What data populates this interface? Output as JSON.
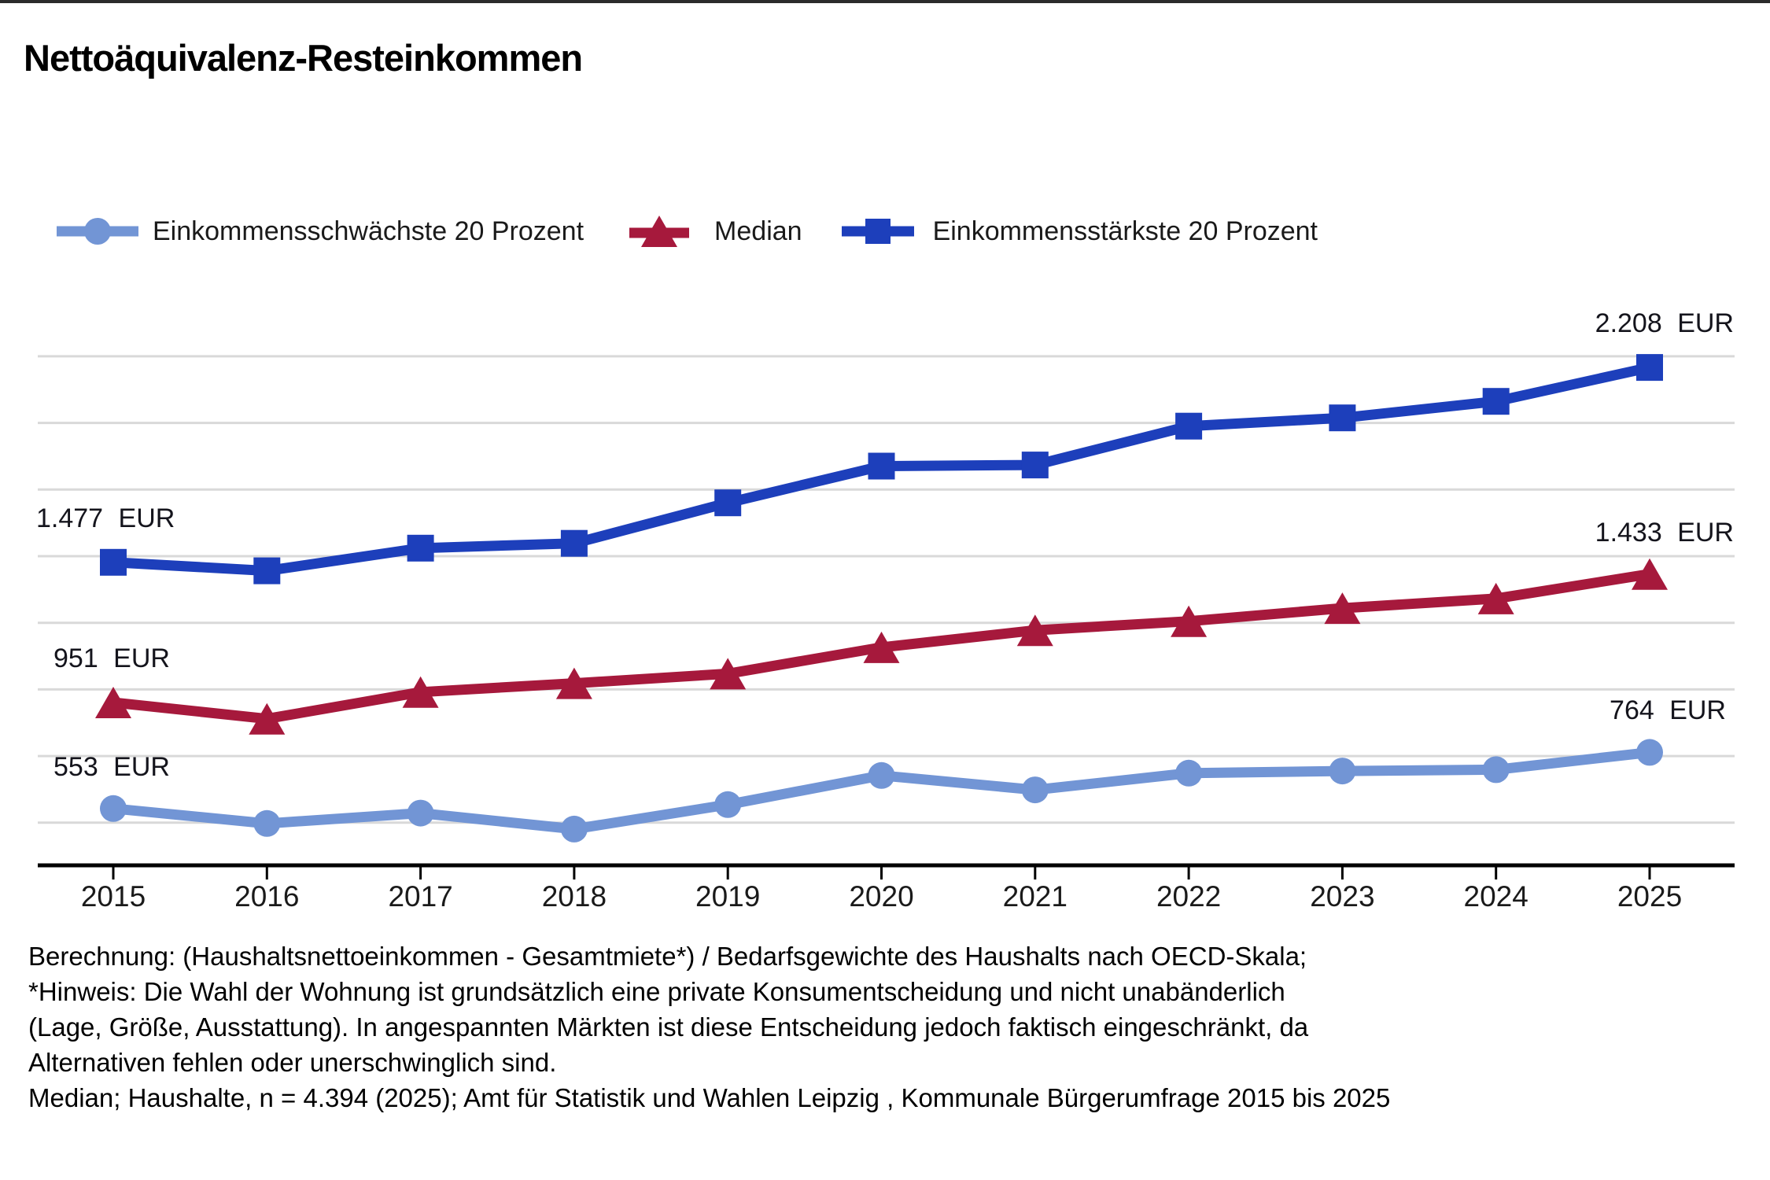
{
  "title": "Nettoäquivalenz-Resteinkommen",
  "legend": {
    "items": [
      {
        "id": "einkommensschwaechste",
        "label": "Einkommensschwächste 20 Prozent",
        "marker": "circle"
      },
      {
        "id": "median",
        "label": "Median",
        "marker": "triangle"
      },
      {
        "id": "einkommensstaerkste",
        "label": "Einkommensstärkste 20 Prozent",
        "marker": "square"
      }
    ]
  },
  "colors": {
    "light_blue": "#7295d5",
    "dark_red": "#a6193c",
    "dark_blue": "#1d3fbb",
    "gridline": "#d9d9d9",
    "axis": "#000000",
    "label_text": "#14141c"
  },
  "annotations": [
    {
      "series": "einkommensstaerkste",
      "year": 2015,
      "text": "1.477 EUR"
    },
    {
      "series": "median",
      "year": 2015,
      "text": "951 EUR"
    },
    {
      "series": "einkommensschwaechste",
      "year": 2015,
      "text": "553 EUR"
    },
    {
      "series": "einkommensstaerkste",
      "year": 2025,
      "text": "2.208 EUR"
    },
    {
      "series": "median",
      "year": 2025,
      "text": "1.433 EUR"
    },
    {
      "series": "einkommensschwaechste",
      "year": 2025,
      "text": "764 EUR"
    }
  ],
  "chart_data": {
    "type": "line",
    "title": "Nettoäquivalenz-Resteinkommen",
    "xlabel": "",
    "ylabel": "EUR",
    "categories": [
      2015,
      2016,
      2017,
      2018,
      2019,
      2020,
      2021,
      2022,
      2023,
      2024,
      2025
    ],
    "series": [
      {
        "id": "einkommensschwaechste",
        "name": "Einkommensschwächste 20 Prozent",
        "marker": "circle",
        "color": "#7295d5",
        "values": [
          553,
          497,
          536,
          476,
          568,
          677,
          623,
          686,
          694,
          699,
          764
        ]
      },
      {
        "id": "median",
        "name": "Median",
        "marker": "triangle",
        "color": "#a6193c",
        "values": [
          951,
          890,
          990,
          1023,
          1059,
          1158,
          1222,
          1256,
          1305,
          1341,
          1433
        ]
      },
      {
        "id": "einkommensstaerkste",
        "name": "Einkommensstärkste 20 Prozent",
        "marker": "square",
        "color": "#1d3fbb",
        "values": [
          1477,
          1445,
          1530,
          1548,
          1700,
          1838,
          1842,
          1988,
          2019,
          2081,
          2208
        ]
      }
    ],
    "gridlines": {
      "values": [
        500,
        750,
        1000,
        1250,
        1500,
        1750,
        2000,
        2250
      ],
      "shown": true
    },
    "ylim": [
      337,
      2550
    ],
    "legend_position": "top",
    "value_labels": {
      "only_first_and_last": true,
      "unit": "EUR",
      "thousands_separator": "."
    }
  },
  "footer": {
    "lines": [
      "Berechnung: (Haushaltsnettoeinkommen - Gesamtmiete*) / Bedarfsgewichte des Haushalts nach OECD-Skala;",
      "*Hinweis: Die Wahl der Wohnung ist grundsätzlich eine private Konsumentscheidung und nicht unabänderlich",
      "(Lage, Größe, Ausstattung). In angespannten Märkten ist diese Entscheidung jedoch faktisch eingeschränkt, da",
      "Alternativen fehlen oder unerschwinglich sind.",
      "Median; Haushalte, n = 4.394 (2025); Amt für Statistik und Wahlen Leipzig , Kommunale Bürgerumfrage 2015 bis 2025"
    ]
  }
}
